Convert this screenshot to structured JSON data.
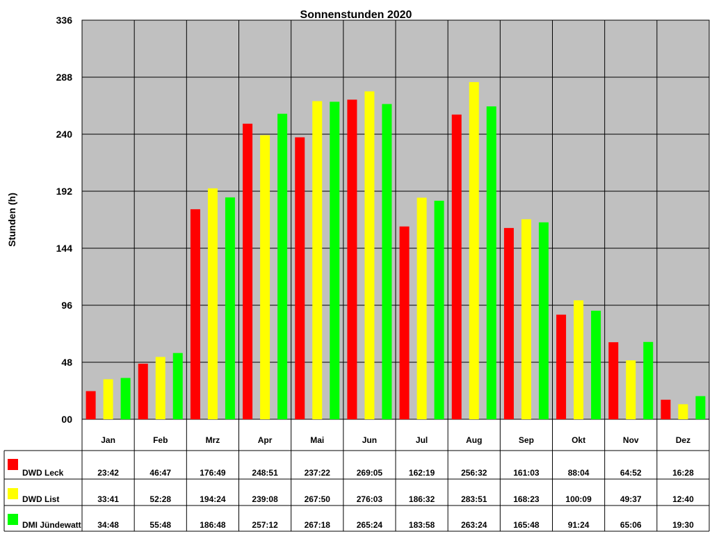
{
  "chart_data": {
    "type": "bar",
    "title": "Sonnenstunden 2020",
    "xlabel": "",
    "ylabel": "Stunden (h)",
    "ylim": [
      0,
      336
    ],
    "yticks": [
      "00",
      "48",
      "96",
      "144",
      "192",
      "240",
      "288",
      "336"
    ],
    "grid": true,
    "legend": "table-left",
    "categories": [
      "Jan",
      "Feb",
      "Mrz",
      "Apr",
      "Mai",
      "Jun",
      "Jul",
      "Aug",
      "Sep",
      "Okt",
      "Nov",
      "Dez"
    ],
    "series": [
      {
        "name": "DWD Leck",
        "color": "#ff0000",
        "values": [
          23.7,
          46.78,
          176.82,
          248.85,
          237.37,
          269.08,
          162.32,
          256.53,
          161.05,
          88.07,
          64.87,
          16.47
        ],
        "labels": [
          "23:42",
          "46:47",
          "176:49",
          "248:51",
          "237:22",
          "269:05",
          "162:19",
          "256:32",
          "161:03",
          "88:04",
          "64:52",
          "16:28"
        ]
      },
      {
        "name": "DWD List",
        "color": "#ffff00",
        "values": [
          33.68,
          52.47,
          194.4,
          239.13,
          267.83,
          276.05,
          186.53,
          283.85,
          168.38,
          100.15,
          49.62,
          12.67
        ],
        "labels": [
          "33:41",
          "52:28",
          "194:24",
          "239:08",
          "267:50",
          "276:03",
          "186:32",
          "283:51",
          "168:23",
          "100:09",
          "49:37",
          "12:40"
        ]
      },
      {
        "name": "DMI Jündewatt",
        "color": "#00ff00",
        "values": [
          34.8,
          55.8,
          186.8,
          257.2,
          267.3,
          265.4,
          183.97,
          263.4,
          165.8,
          91.4,
          65.1,
          19.5
        ],
        "labels": [
          "34:48",
          "55:48",
          "186:48",
          "257:12",
          "267:18",
          "265:24",
          "183:58",
          "263:24",
          "165:48",
          "91:24",
          "65:06",
          "19:30"
        ]
      }
    ]
  }
}
